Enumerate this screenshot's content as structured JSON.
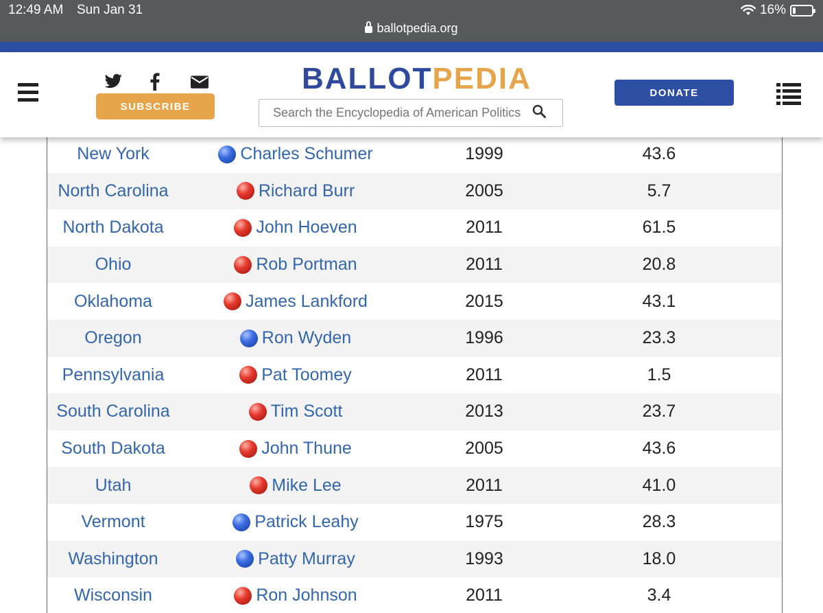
{
  "status_bar": {
    "time": "12:49 AM",
    "date": "Sun Jan 31",
    "battery": "16%",
    "battery_level": 0.16
  },
  "browser": {
    "url": "ballotpedia.org"
  },
  "header": {
    "logo_part1": "BALLOT",
    "logo_part2": "PEDIA",
    "subscribe_label": "SUBSCRIBE",
    "donate_label": "DONATE",
    "search_placeholder": "Search the Encyclopedia of American Politics"
  },
  "colors": {
    "brand_blue": "#2c4ea3",
    "brand_gold": "#e6a54a",
    "link": "#3366aa",
    "democrat": "#3b6de0",
    "republican": "#e5392d"
  },
  "table": {
    "rows": [
      {
        "state": "New York",
        "party": "dem",
        "name": "Charles Schumer",
        "year": "1999",
        "value": "43.6"
      },
      {
        "state": "North Carolina",
        "party": "rep",
        "name": "Richard Burr",
        "year": "2005",
        "value": "5.7"
      },
      {
        "state": "North Dakota",
        "party": "rep",
        "name": "John Hoeven",
        "year": "2011",
        "value": "61.5"
      },
      {
        "state": "Ohio",
        "party": "rep",
        "name": "Rob Portman",
        "year": "2011",
        "value": "20.8"
      },
      {
        "state": "Oklahoma",
        "party": "rep",
        "name": "James Lankford",
        "year": "2015",
        "value": "43.1"
      },
      {
        "state": "Oregon",
        "party": "dem",
        "name": "Ron Wyden",
        "year": "1996",
        "value": "23.3"
      },
      {
        "state": "Pennsylvania",
        "party": "rep",
        "name": "Pat Toomey",
        "year": "2011",
        "value": "1.5"
      },
      {
        "state": "South Carolina",
        "party": "rep",
        "name": "Tim Scott",
        "year": "2013",
        "value": "23.7"
      },
      {
        "state": "South Dakota",
        "party": "rep",
        "name": "John Thune",
        "year": "2005",
        "value": "43.6"
      },
      {
        "state": "Utah",
        "party": "rep",
        "name": "Mike Lee",
        "year": "2011",
        "value": "41.0"
      },
      {
        "state": "Vermont",
        "party": "dem",
        "name": "Patrick Leahy",
        "year": "1975",
        "value": "28.3"
      },
      {
        "state": "Washington",
        "party": "dem",
        "name": "Patty Murray",
        "year": "1993",
        "value": "18.0"
      },
      {
        "state": "Wisconsin",
        "party": "rep",
        "name": "Ron Johnson",
        "year": "2011",
        "value": "3.4"
      }
    ]
  }
}
